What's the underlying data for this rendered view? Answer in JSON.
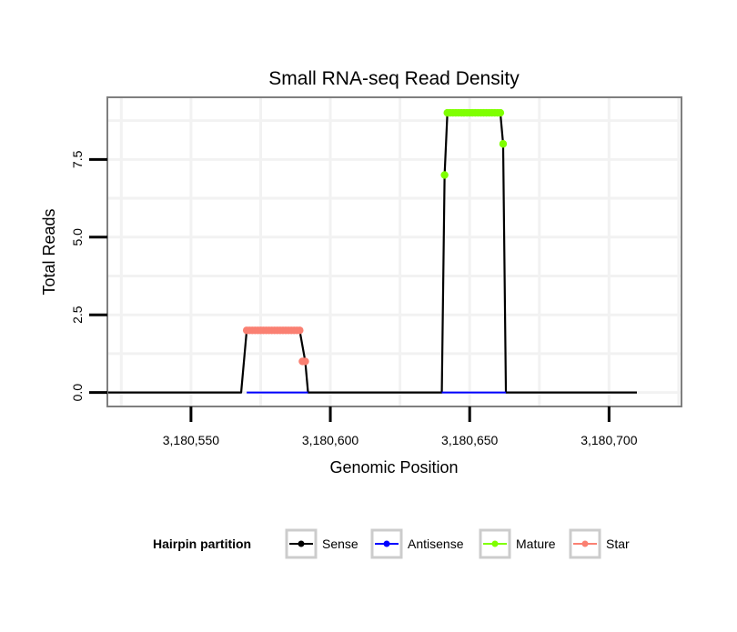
{
  "chart_data": {
    "type": "line",
    "title": "Small RNA-seq Read Density",
    "xlabel": "Genomic Position",
    "ylabel": "Total Reads",
    "xlim": [
      3180520,
      3180726
    ],
    "ylim": [
      -0.45,
      9.5
    ],
    "x_ticks": [
      {
        "value": 3180550,
        "label": "3,180,550"
      },
      {
        "value": 3180600,
        "label": "3,180,600"
      },
      {
        "value": 3180650,
        "label": "3,180,650"
      },
      {
        "value": 3180700,
        "label": "3,180,700"
      }
    ],
    "y_ticks": [
      {
        "value": 0,
        "label": "0.0"
      },
      {
        "value": 2.5,
        "label": "2.5"
      },
      {
        "value": 5,
        "label": "5.0"
      },
      {
        "value": 7.5,
        "label": "7.5"
      }
    ],
    "grid": true,
    "legend": {
      "title": "Hairpin partition",
      "position": "bottom"
    },
    "series": [
      {
        "name": "Sense",
        "color": "#000000",
        "show_points": false,
        "x": [
          3180520,
          3180568,
          3180570,
          3180589,
          3180591,
          3180592,
          3180640,
          3180641,
          3180642,
          3180661,
          3180662,
          3180663,
          3180710
        ],
        "y": [
          0,
          0,
          2,
          2,
          1,
          0,
          0,
          7,
          9,
          9,
          8,
          0,
          0
        ]
      },
      {
        "name": "Antisense",
        "color": "#0000ff",
        "show_points": false,
        "x": [
          3180570,
          3180592,
          3180640,
          3180663
        ],
        "y": [
          0,
          0,
          0,
          0
        ],
        "segments": [
          [
            0,
            1
          ],
          [
            2,
            3
          ]
        ]
      },
      {
        "name": "Mature",
        "color": "#7fff00",
        "show_points": true,
        "x": [
          3180641,
          3180642,
          3180643,
          3180644,
          3180645,
          3180646,
          3180647,
          3180648,
          3180649,
          3180650,
          3180651,
          3180652,
          3180653,
          3180654,
          3180655,
          3180656,
          3180657,
          3180658,
          3180659,
          3180660,
          3180661,
          3180662
        ],
        "y": [
          7,
          9,
          9,
          9,
          9,
          9,
          9,
          9,
          9,
          9,
          9,
          9,
          9,
          9,
          9,
          9,
          9,
          9,
          9,
          9,
          9,
          8
        ]
      },
      {
        "name": "Star",
        "color": "#fa8072",
        "show_points": true,
        "x": [
          3180570,
          3180571,
          3180572,
          3180573,
          3180574,
          3180575,
          3180576,
          3180577,
          3180578,
          3180579,
          3180580,
          3180581,
          3180582,
          3180583,
          3180584,
          3180585,
          3180586,
          3180587,
          3180588,
          3180589,
          3180590,
          3180591
        ],
        "y": [
          2,
          2,
          2,
          2,
          2,
          2,
          2,
          2,
          2,
          2,
          2,
          2,
          2,
          2,
          2,
          2,
          2,
          2,
          2,
          2,
          1,
          1
        ]
      }
    ]
  }
}
